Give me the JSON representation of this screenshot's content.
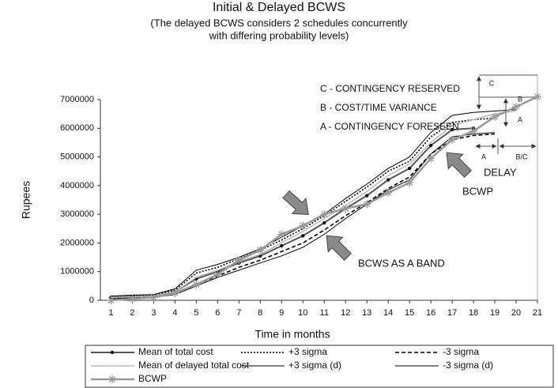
{
  "chart_data": {
    "type": "line",
    "title": "Initial & Delayed BCWS",
    "subtitle": [
      "(The delayed BCWS considers 2 schedules concurrently",
      "with differing probability levels)"
    ],
    "x_label": "Time in months",
    "y_label": "Rupees",
    "x": [
      1,
      2,
      3,
      4,
      5,
      6,
      7,
      8,
      9,
      10,
      11,
      12,
      13,
      14,
      15,
      16,
      17,
      18,
      19,
      20,
      21
    ],
    "xlim": [
      0.5,
      21
    ],
    "xticks": [
      1,
      2,
      3,
      4,
      5,
      6,
      7,
      8,
      9,
      10,
      11,
      12,
      13,
      14,
      15,
      16,
      17,
      18,
      19,
      20,
      21
    ],
    "ylim": [
      0,
      7000000
    ],
    "yticks": [
      0,
      1000000,
      2000000,
      3000000,
      4000000,
      5000000,
      6000000,
      7000000
    ],
    "series": [
      {
        "name": "Mean of total cost",
        "color": "#555555",
        "width": 2,
        "dash": "solid",
        "marker": "dot",
        "values": [
          100000,
          120000,
          150000,
          300000,
          750000,
          1000000,
          1300000,
          1550000,
          1900000,
          2250000,
          2700000,
          3200000,
          3650000,
          4200000,
          4600000,
          5400000,
          5950000,
          6000000,
          null,
          null,
          null
        ]
      },
      {
        "name": "+3 sigma",
        "color": "#000000",
        "width": 1.6,
        "dash": "dotted",
        "marker": "none",
        "values": [
          120000,
          150000,
          180000,
          350000,
          950000,
          1150000,
          1450000,
          1750000,
          2100000,
          2500000,
          2950000,
          3450000,
          3950000,
          4500000,
          4850000,
          5700000,
          6200000,
          6300000,
          6350000,
          null,
          null
        ]
      },
      {
        "name": "-3 sigma",
        "color": "#000000",
        "width": 1.6,
        "dash": "dashed",
        "marker": "none",
        "values": [
          80000,
          100000,
          120000,
          250000,
          550000,
          850000,
          1150000,
          1400000,
          1700000,
          2000000,
          2450000,
          2950000,
          3400000,
          3900000,
          4300000,
          5100000,
          5600000,
          5750000,
          5800000,
          null,
          null
        ]
      },
      {
        "name": "Mean of delayed total cost",
        "color": "#bbbbbb",
        "width": 1.5,
        "dash": "solid",
        "marker": "none",
        "values": [
          100000,
          120000,
          150000,
          300000,
          800000,
          1050000,
          1350000,
          1600000,
          2000000,
          2400000,
          2850000,
          3300000,
          3800000,
          4350000,
          4750000,
          5500000,
          6100000,
          6300000,
          6500000,
          6600000,
          null
        ]
      },
      {
        "name": "+3 sigma (d)",
        "color": "#000000",
        "width": 1,
        "dash": "solid",
        "marker": "none",
        "values": [
          150000,
          180000,
          200000,
          400000,
          1050000,
          1250000,
          1500000,
          1800000,
          2200000,
          2600000,
          3000000,
          3550000,
          4050000,
          4600000,
          5000000,
          5850000,
          6450000,
          6550000,
          6600000,
          6650000,
          null
        ]
      },
      {
        "name": "-3 sigma (d)",
        "color": "#000000",
        "width": 1,
        "dash": "solid",
        "marker": "none",
        "values": [
          50000,
          80000,
          100000,
          200000,
          500000,
          800000,
          1050000,
          1300000,
          1550000,
          1850000,
          2300000,
          2850000,
          3350000,
          3850000,
          4200000,
          5100000,
          5700000,
          5800000,
          5850000,
          null,
          null
        ]
      },
      {
        "name": "BCWP",
        "color": "#999999",
        "width": 2.5,
        "dash": "solid",
        "marker": "star",
        "values": [
          0,
          50000,
          100000,
          250000,
          550000,
          900000,
          1400000,
          1750000,
          2300000,
          2600000,
          3000000,
          3200000,
          3350000,
          3750000,
          4100000,
          4950000,
          5600000,
          5900000,
          6400000,
          6750000,
          7100000
        ]
      }
    ],
    "annotations": [
      "C - CONTINGENCY RESERVED",
      "B - COST/TIME VARIANCE",
      "A - CONTINGENCY FORESEEN",
      "DELAY",
      "BCWP",
      "BCWS AS A BAND",
      "C",
      "B",
      "A",
      "A",
      "B/C"
    ]
  }
}
